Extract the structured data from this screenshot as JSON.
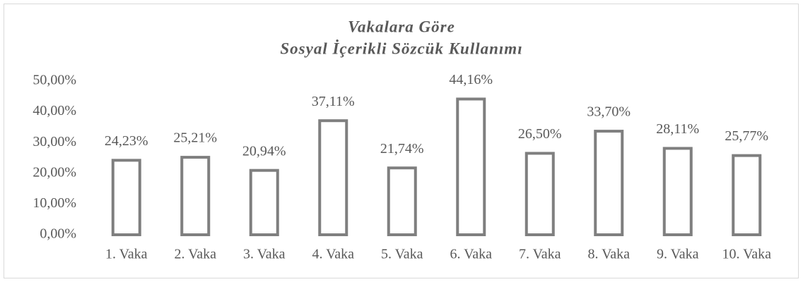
{
  "chart_data": {
    "type": "bar",
    "title": [
      "Vakalara Göre",
      "Sosyal İçerikli Sözcük Kullanımı"
    ],
    "categories": [
      "1. Vaka",
      "2. Vaka",
      "3. Vaka",
      "4. Vaka",
      "5. Vaka",
      "6. Vaka",
      "7. Vaka",
      "8. Vaka",
      "9. Vaka",
      "10. Vaka"
    ],
    "values": [
      24.23,
      25.21,
      20.94,
      37.11,
      21.74,
      44.16,
      26.5,
      33.7,
      28.11,
      25.77
    ],
    "value_labels": [
      "24,23%",
      "25,21%",
      "20,94%",
      "37,11%",
      "21,74%",
      "44,16%",
      "26,50%",
      "33,70%",
      "28,11%",
      "25,77%"
    ],
    "color": "#7f7f7f",
    "ylim": [
      0,
      50
    ],
    "yticks": [
      {
        "value": 0,
        "label": "0,00%"
      },
      {
        "value": 10,
        "label": "10,00%"
      },
      {
        "value": 20,
        "label": "20,00%"
      },
      {
        "value": 30,
        "label": "30,00%"
      },
      {
        "value": 40,
        "label": "40,00%"
      },
      {
        "value": 50,
        "label": "50,00%"
      }
    ],
    "grid": false
  }
}
